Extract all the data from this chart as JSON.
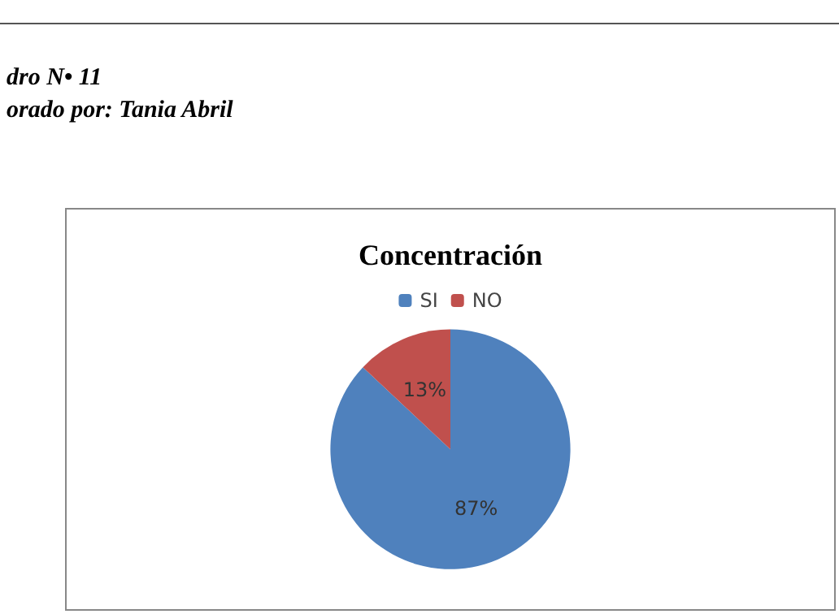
{
  "chart_data": {
    "type": "pie",
    "title": "Concentración",
    "annotations": [
      "dro N• 11",
      "orado por: Tania Abril"
    ],
    "categories": [
      "SI",
      "NO"
    ],
    "values": [
      87,
      13
    ],
    "colors": [
      "#4f81bd",
      "#c0504d"
    ],
    "value_labels": [
      "87%",
      "13%"
    ],
    "legend": "top"
  }
}
